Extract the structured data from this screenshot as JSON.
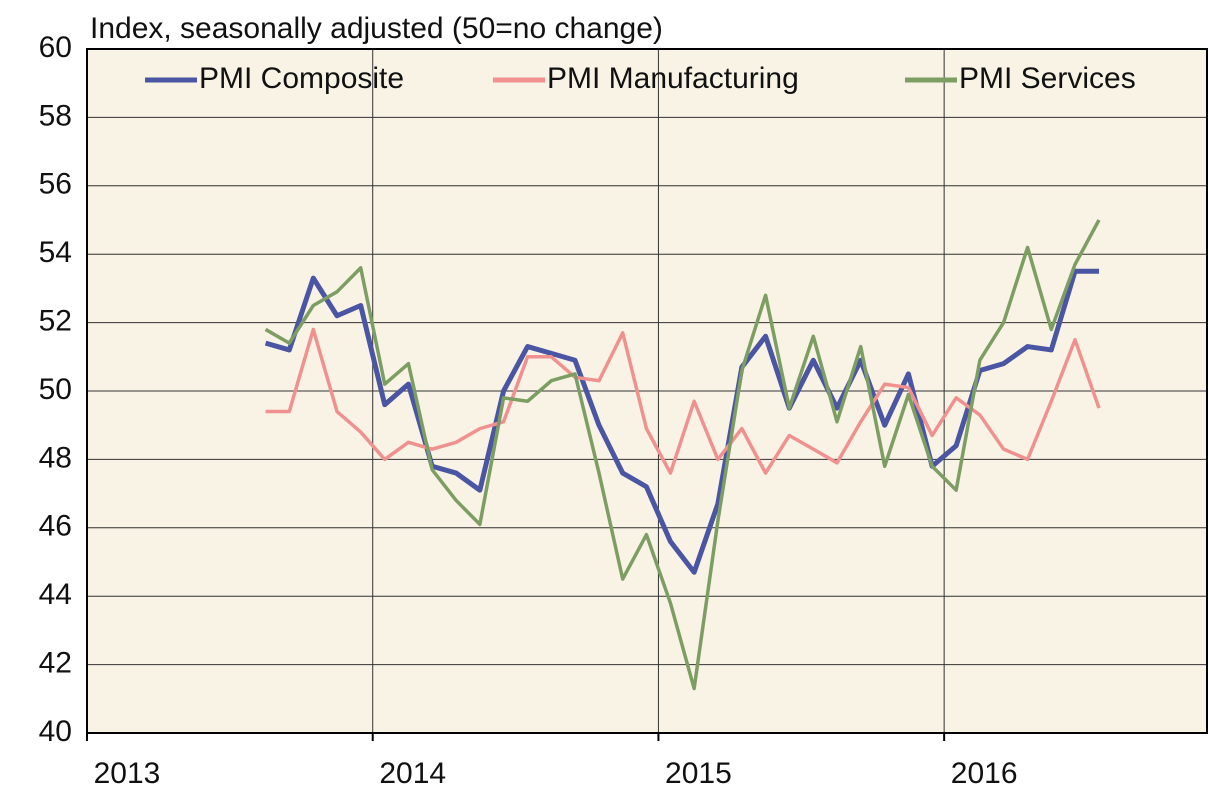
{
  "chart_data": {
    "type": "line",
    "y_label": "Index, seasonally adjusted (50=no change)",
    "x": [
      2013.625,
      2013.708,
      2013.792,
      2013.875,
      2013.958,
      2014.042,
      2014.125,
      2014.208,
      2014.292,
      2014.375,
      2014.458,
      2014.542,
      2014.625,
      2014.708,
      2014.792,
      2014.875,
      2014.958,
      2015.042,
      2015.125,
      2015.208,
      2015.292,
      2015.375,
      2015.458,
      2015.542,
      2015.625,
      2015.708,
      2015.792,
      2015.875,
      2015.958,
      2016.042,
      2016.125,
      2016.208,
      2016.292,
      2016.375,
      2016.458,
      2016.542
    ],
    "series": [
      {
        "name": "PMI Composite",
        "color": "#4a55a3",
        "width": 5,
        "values": [
          51.4,
          51.2,
          53.3,
          52.2,
          52.5,
          49.6,
          50.2,
          47.8,
          47.6,
          47.1,
          50.0,
          51.3,
          51.1,
          50.9,
          49.0,
          47.6,
          47.2,
          45.6,
          44.7,
          46.7,
          50.7,
          51.6,
          49.5,
          50.9,
          49.5,
          50.9,
          49.0,
          50.5,
          47.8,
          48.4,
          50.6,
          50.8,
          51.3,
          51.2,
          53.5,
          53.5
        ]
      },
      {
        "name": "PMI Manufacturing",
        "color": "#f0918f",
        "width": 3.5,
        "values": [
          49.4,
          49.4,
          51.8,
          49.4,
          48.8,
          48.0,
          48.5,
          48.3,
          48.5,
          48.9,
          49.1,
          51.0,
          51.0,
          50.4,
          50.3,
          51.7,
          48.9,
          47.6,
          49.7,
          48.0,
          48.9,
          47.6,
          48.7,
          48.3,
          47.9,
          49.1,
          50.2,
          50.1,
          48.7,
          49.8,
          49.3,
          48.3,
          48.0,
          49.7,
          51.5,
          49.5
        ]
      },
      {
        "name": "PMI Services",
        "color": "#7d9e62",
        "width": 3.5,
        "values": [
          51.8,
          51.4,
          52.5,
          52.9,
          53.6,
          50.2,
          50.8,
          47.7,
          46.8,
          46.1,
          49.8,
          49.7,
          50.3,
          50.5,
          47.6,
          44.5,
          45.8,
          43.8,
          41.3,
          46.2,
          50.6,
          52.8,
          49.5,
          51.6,
          49.1,
          51.3,
          47.8,
          49.9,
          47.8,
          47.1,
          50.9,
          52.0,
          54.2,
          51.8,
          53.7,
          55.0
        ]
      }
    ],
    "xlim": [
      2013,
      2016.92
    ],
    "xticks": [
      2013,
      2014,
      2015,
      2016
    ],
    "ylim": [
      40,
      60
    ],
    "yticks": [
      40,
      42,
      44,
      46,
      48,
      50,
      52,
      54,
      56,
      58,
      60
    ],
    "grid": true,
    "legend": "top",
    "plot_background": "#f9f3e5"
  }
}
